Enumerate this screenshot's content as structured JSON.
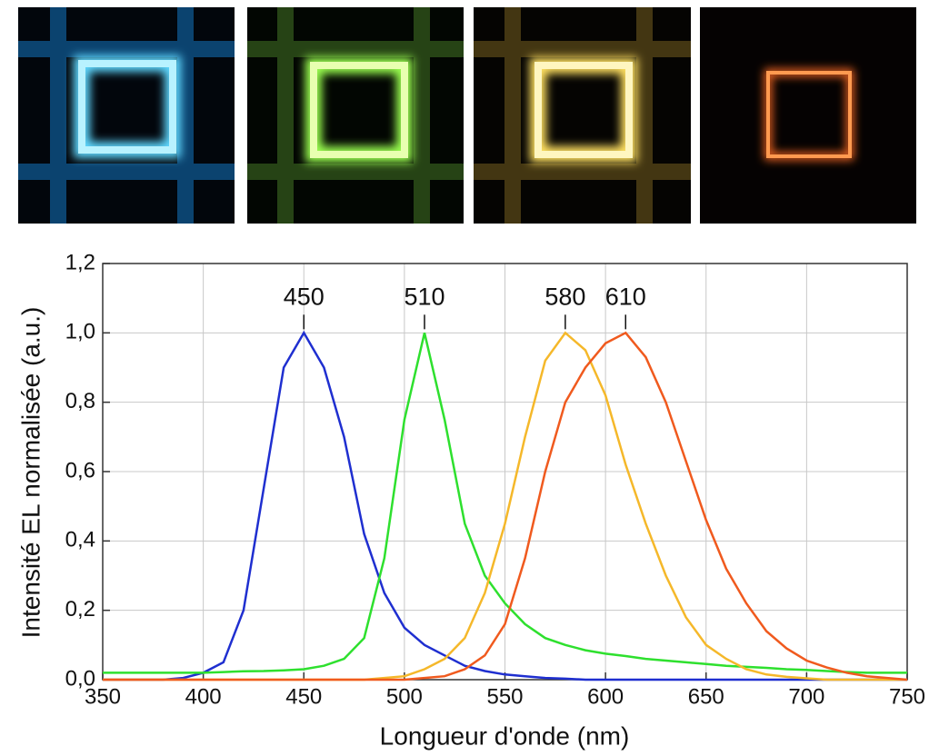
{
  "chart_data": {
    "type": "line",
    "xlabel": "Longueur d'onde (nm)",
    "ylabel": "Intensité EL normalisée (a.u.)",
    "x": [
      350,
      360,
      370,
      380,
      390,
      400,
      410,
      420,
      430,
      440,
      450,
      460,
      470,
      480,
      490,
      500,
      510,
      520,
      530,
      540,
      550,
      560,
      570,
      580,
      590,
      600,
      610,
      620,
      630,
      640,
      650,
      660,
      670,
      680,
      690,
      700,
      710,
      720,
      730,
      740,
      750
    ],
    "series": [
      {
        "name": "450",
        "color": "#1f2fd0",
        "values": [
          0,
          0,
          0,
          0,
          0.005,
          0.02,
          0.05,
          0.2,
          0.55,
          0.9,
          1.0,
          0.9,
          0.7,
          0.42,
          0.25,
          0.15,
          0.1,
          0.07,
          0.04,
          0.025,
          0.015,
          0.01,
          0.005,
          0.003,
          0,
          0,
          0,
          0,
          0,
          0,
          0,
          0,
          0,
          0,
          0,
          0,
          0,
          0,
          0,
          0,
          0
        ]
      },
      {
        "name": "510",
        "color": "#2ee02e",
        "values": [
          0.02,
          0.02,
          0.02,
          0.02,
          0.02,
          0.02,
          0.022,
          0.024,
          0.025,
          0.027,
          0.03,
          0.04,
          0.06,
          0.12,
          0.35,
          0.75,
          1.0,
          0.75,
          0.45,
          0.3,
          0.22,
          0.16,
          0.12,
          0.1,
          0.085,
          0.075,
          0.068,
          0.06,
          0.055,
          0.05,
          0.045,
          0.04,
          0.037,
          0.034,
          0.03,
          0.028,
          0.025,
          0.022,
          0.02,
          0.02,
          0.02
        ]
      },
      {
        "name": "580",
        "color": "#f5b82a",
        "values": [
          0,
          0,
          0,
          0,
          0,
          0,
          0,
          0,
          0,
          0,
          0,
          0,
          0,
          0,
          0.005,
          0.01,
          0.03,
          0.06,
          0.12,
          0.25,
          0.45,
          0.7,
          0.92,
          1.0,
          0.95,
          0.82,
          0.62,
          0.45,
          0.3,
          0.18,
          0.1,
          0.06,
          0.03,
          0.015,
          0.008,
          0.004,
          0,
          0,
          0,
          0,
          0
        ]
      },
      {
        "name": "610",
        "color": "#f05a1e",
        "values": [
          0,
          0,
          0,
          0,
          0,
          0,
          0,
          0,
          0,
          0,
          0,
          0,
          0,
          0,
          0,
          0,
          0.005,
          0.01,
          0.03,
          0.07,
          0.16,
          0.35,
          0.6,
          0.8,
          0.9,
          0.97,
          1.0,
          0.93,
          0.8,
          0.63,
          0.46,
          0.32,
          0.22,
          0.14,
          0.09,
          0.055,
          0.035,
          0.02,
          0.01,
          0.005,
          0
        ]
      }
    ],
    "annotations": [
      "450",
      "510",
      "580",
      "610"
    ],
    "xlim": [
      350,
      750
    ],
    "ylim": [
      0,
      1.2
    ],
    "xticks": [
      350,
      400,
      450,
      500,
      550,
      600,
      650,
      700,
      750
    ],
    "yticks": [
      {
        "value": 0,
        "label": "0,0"
      },
      {
        "value": 0.2,
        "label": "0,2"
      },
      {
        "value": 0.4,
        "label": "0,4"
      },
      {
        "value": 0.6,
        "label": "0,6"
      },
      {
        "value": 0.8,
        "label": "0,8"
      },
      {
        "value": 1.0,
        "label": "1,0"
      },
      {
        "value": 1.2,
        "label": "1,2"
      }
    ],
    "grid": true
  }
}
